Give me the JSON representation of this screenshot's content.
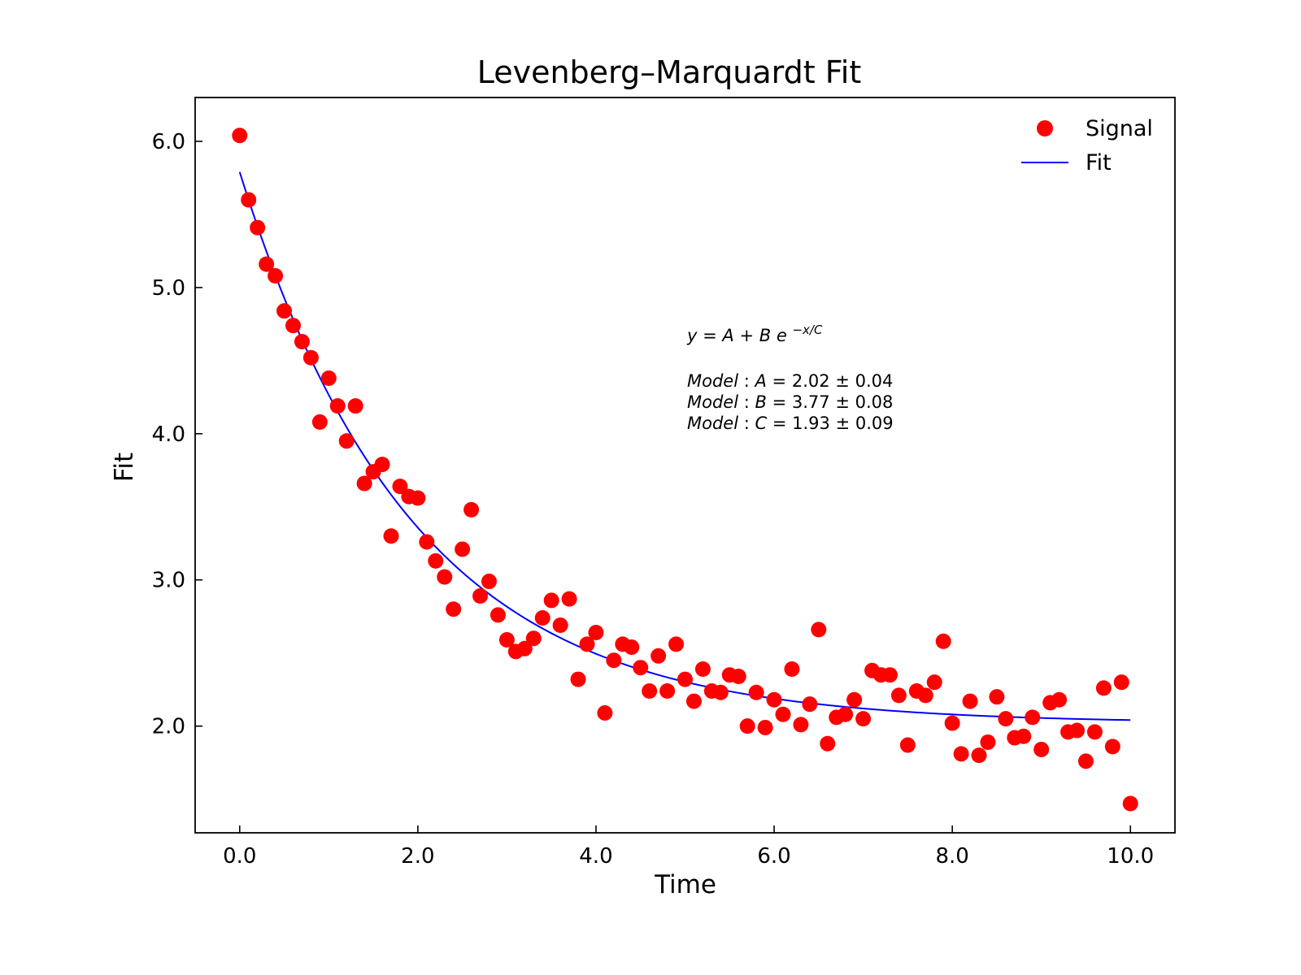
{
  "chart_data": {
    "type": "scatter",
    "title": "Levenberg–Marquardt Fit",
    "xlabel": "Time",
    "ylabel": "Fit",
    "xlim": [
      -0.5,
      10.5
    ],
    "ylim": [
      1.27,
      6.3
    ],
    "xticks": [
      0,
      2,
      4,
      6,
      8,
      10
    ],
    "xtick_labels": [
      "0.0",
      "2.0",
      "4.0",
      "6.0",
      "8.0",
      "10.0"
    ],
    "yticks": [
      2,
      3,
      4,
      5,
      6
    ],
    "ytick_labels": [
      "2.0",
      "3.0",
      "4.0",
      "5.0",
      "6.0"
    ],
    "grid": false,
    "legend_position": "top-right",
    "legend": [
      "Signal",
      "Fit"
    ],
    "series": [
      {
        "name": "Signal",
        "kind": "scatter",
        "color": "#ff0000",
        "x": [
          0.0,
          0.1,
          0.2,
          0.3,
          0.4,
          0.5,
          0.6,
          0.7,
          0.8,
          0.9,
          1.0,
          1.1,
          1.2,
          1.3,
          1.4,
          1.5,
          1.6,
          1.7,
          1.8,
          1.9,
          2.0,
          2.1,
          2.2,
          2.3,
          2.4,
          2.5,
          2.6,
          2.7,
          2.8,
          2.9,
          3.0,
          3.1,
          3.2,
          3.3,
          3.4,
          3.5,
          3.6,
          3.7,
          3.8,
          3.9,
          4.0,
          4.1,
          4.2,
          4.3,
          4.4,
          4.5,
          4.6,
          4.7,
          4.8,
          4.9,
          5.0,
          5.1,
          5.2,
          5.3,
          5.4,
          5.5,
          5.6,
          5.7,
          5.8,
          5.9,
          6.0,
          6.1,
          6.2,
          6.3,
          6.4,
          6.5,
          6.6,
          6.7,
          6.8,
          6.9,
          7.0,
          7.1,
          7.2,
          7.3,
          7.4,
          7.5,
          7.6,
          7.7,
          7.8,
          7.9,
          8.0,
          8.1,
          8.2,
          8.3,
          8.4,
          8.5,
          8.6,
          8.7,
          8.8,
          8.9,
          9.0,
          9.1,
          9.2,
          9.3,
          9.4,
          9.5,
          9.6,
          9.7,
          9.8,
          9.9,
          10.0
        ],
        "y": [
          6.04,
          5.6,
          5.41,
          5.16,
          5.08,
          4.84,
          4.74,
          4.63,
          4.52,
          4.08,
          4.38,
          4.19,
          3.95,
          4.19,
          3.66,
          3.74,
          3.79,
          3.3,
          3.64,
          3.57,
          3.56,
          3.26,
          3.13,
          3.02,
          2.8,
          3.21,
          3.48,
          2.89,
          2.99,
          2.76,
          2.59,
          2.51,
          2.53,
          2.6,
          2.74,
          2.86,
          2.69,
          2.87,
          2.32,
          2.56,
          2.64,
          2.09,
          2.45,
          2.56,
          2.54,
          2.4,
          2.24,
          2.48,
          2.24,
          2.56,
          2.32,
          2.17,
          2.39,
          2.24,
          2.23,
          2.35,
          2.34,
          2.0,
          2.23,
          1.99,
          2.18,
          2.08,
          2.39,
          2.01,
          2.15,
          2.66,
          1.88,
          2.06,
          2.08,
          2.18,
          2.05,
          2.38,
          2.35,
          2.35,
          2.21,
          1.87,
          2.24,
          2.21,
          2.3,
          2.58,
          2.02,
          1.81,
          2.17,
          1.8,
          1.89,
          2.2,
          2.05,
          1.92,
          1.93,
          2.06,
          1.84,
          2.16,
          2.18,
          1.96,
          1.97,
          1.76,
          1.96,
          2.26,
          1.86,
          2.3,
          1.47
        ]
      },
      {
        "name": "Fit",
        "kind": "line",
        "color": "#0000ff",
        "model": "A + B*exp(-x/C)",
        "params": {
          "A": 2.02,
          "B": 3.77,
          "C": 1.93
        },
        "x_range": [
          0,
          10
        ]
      }
    ],
    "annotations": {
      "equation": {
        "lhs": "y",
        "A": "A",
        "B": "B",
        "exp_base": "e",
        "exponent": "−x/C"
      },
      "params": [
        {
          "label": "Model",
          "name": "A",
          "value": "2.02",
          "pm": "±",
          "err": "0.04"
        },
        {
          "label": "Model",
          "name": "B",
          "value": "3.77",
          "pm": "±",
          "err": "0.08"
        },
        {
          "label": "Model",
          "name": "C",
          "value": "1.93",
          "pm": "±",
          "err": "0.09"
        }
      ]
    }
  }
}
